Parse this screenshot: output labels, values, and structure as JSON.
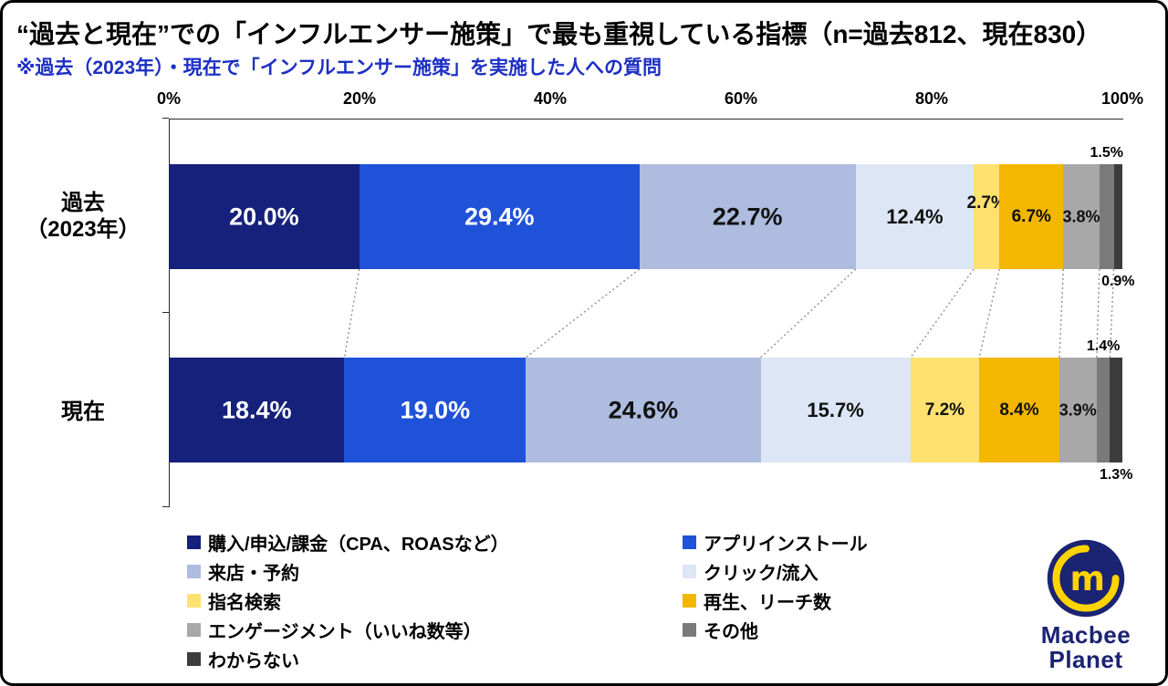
{
  "accent_colors": {
    "title_text": "#000000",
    "subtitle_blue": "#1d2fc5",
    "logo_navy": "#1b2373",
    "logo_yellow": "#ffd400",
    "axis_line": "#2b2b2b",
    "connector_gray": "#8f8f8f"
  },
  "header": {
    "title": "“過去と現在”での「インフルエンサー施策」で最も重視している指標（n=過去812、現在830）",
    "subtitle": "※過去（2023年）・現在で「インフルエンサー施策」を実施した人への質問"
  },
  "chart_data": {
    "type": "bar",
    "subtype": "horizontal-stacked-percentage",
    "title": "“過去と現在”での「インフルエンサー施策」で最も重視している指標",
    "sample_note": "n=過去812、現在830",
    "x_axis": {
      "ticks": [
        "0%",
        "20%",
        "40%",
        "60%",
        "80%",
        "100%"
      ],
      "range": [
        0,
        100
      ],
      "position": "top"
    },
    "categories": [
      "過去（2023年）",
      "現在"
    ],
    "category_display": [
      [
        "過去",
        "（2023年）"
      ],
      [
        "現在"
      ]
    ],
    "series": [
      {
        "name": "購入/申込/課金（CPA、ROASなど）",
        "color": "#15217a",
        "values": [
          20.0,
          18.4
        ]
      },
      {
        "name": "アプリインストール",
        "color": "#2052d9",
        "values": [
          29.4,
          19.0
        ]
      },
      {
        "name": "来店・予約",
        "color": "#aebcdf",
        "values": [
          22.7,
          24.6
        ]
      },
      {
        "name": "クリック/流入",
        "color": "#dce6f4",
        "values": [
          12.4,
          15.7
        ]
      },
      {
        "name": "指名検索",
        "color": "#ffe170",
        "values": [
          2.7,
          7.2
        ]
      },
      {
        "name": "再生、リーチ数",
        "color": "#f4b700",
        "values": [
          6.7,
          8.4
        ]
      },
      {
        "name": "エンゲージメント（いいね数等）",
        "color": "#a8a8a8",
        "values": [
          3.8,
          3.9
        ]
      },
      {
        "name": "その他",
        "color": "#7a7a7a",
        "values": [
          1.5,
          1.4
        ]
      },
      {
        "name": "わからない",
        "color": "#3c3c3c",
        "values": [
          0.9,
          1.3
        ]
      }
    ],
    "value_labels": {
      "inside": [
        {
          "series": 0,
          "color": "#ffffff",
          "size": 27
        },
        {
          "series": 1,
          "color": "#ffffff",
          "size": 27
        },
        {
          "series": 2,
          "color": "#111111",
          "size": 27
        },
        {
          "series": 3,
          "color": "#111111",
          "size": 22
        },
        {
          "series": 4,
          "color": "#111111",
          "size": 19
        },
        {
          "series": 5,
          "color": "#111111",
          "size": 19
        },
        {
          "series": 6,
          "color": "#111111",
          "size": 18
        }
      ],
      "offsets": [
        {
          "bar": 0,
          "series": 4,
          "dy": -15
        }
      ],
      "outside": [
        {
          "series": 7,
          "position": "above"
        },
        {
          "series": 8,
          "position": "below"
        }
      ]
    },
    "legend_position": "bottom",
    "grid": false
  },
  "legend": {
    "column1": [
      0,
      2,
      4,
      6,
      8
    ],
    "column2": [
      1,
      3,
      5,
      7
    ]
  },
  "logo": {
    "line1": "Macbee",
    "line2": "Planet",
    "letter": "m"
  }
}
